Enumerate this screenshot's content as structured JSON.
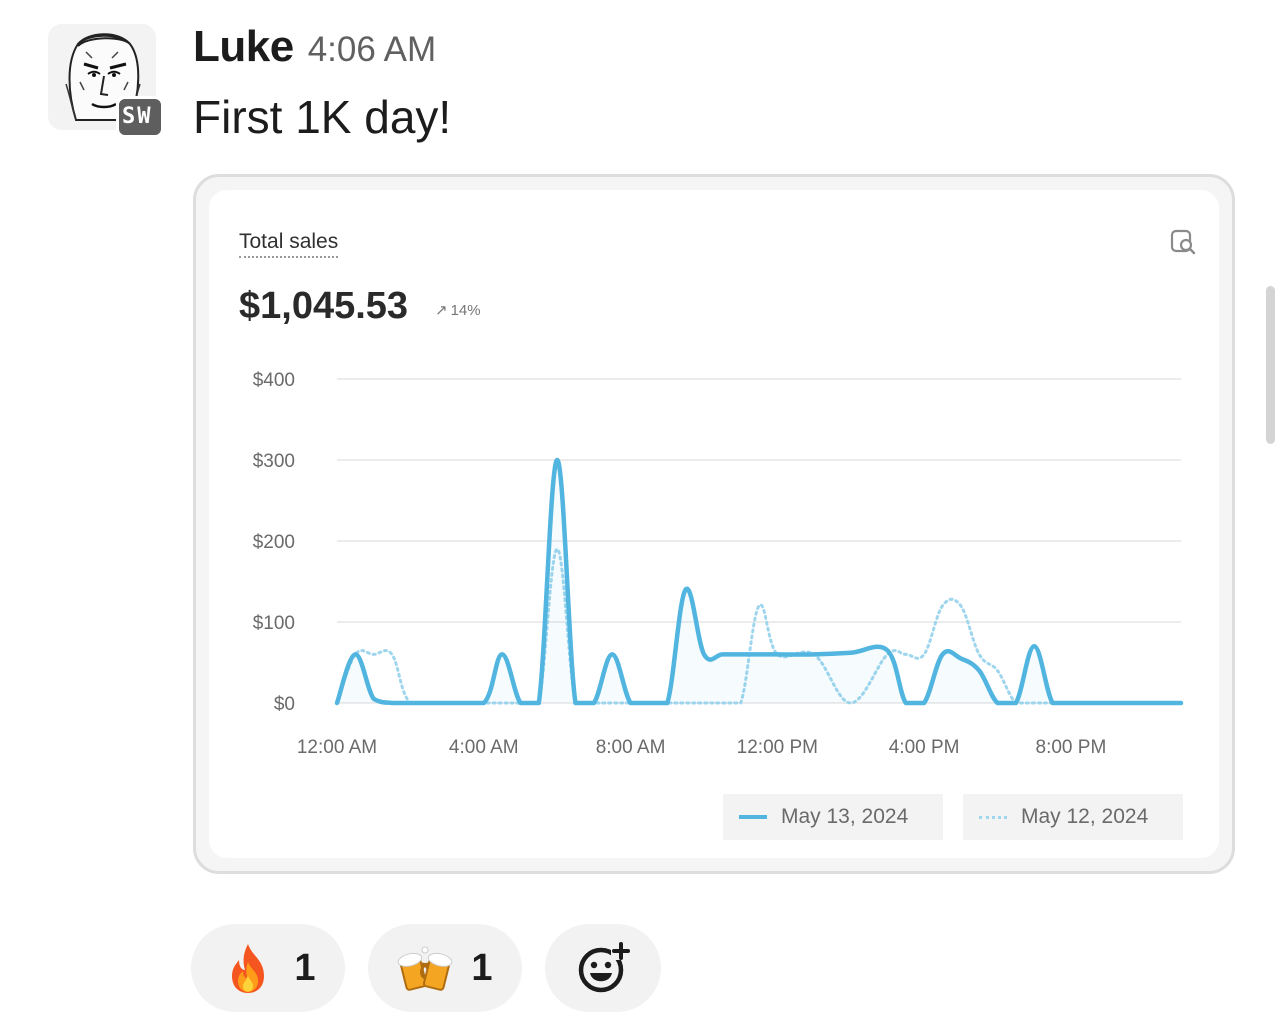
{
  "message": {
    "author": "Luke",
    "timestamp": "4:06 AM",
    "text": "First 1K day!",
    "avatar_badge": "SW"
  },
  "card": {
    "title": "Total sales",
    "value": "$1,045.53",
    "change": "14%",
    "change_arrow": "↗",
    "icon": "magnifier-page-icon"
  },
  "chart_data": {
    "type": "line",
    "x_unit": "hour of day",
    "x": [
      0,
      0.5,
      1,
      1.5,
      2,
      3,
      4,
      4.5,
      5,
      5.5,
      6,
      6.5,
      7,
      7.5,
      8,
      8.5,
      9,
      9.5,
      10,
      10.5,
      11,
      11.5,
      12,
      13,
      14,
      15,
      15.5,
      16,
      16.5,
      17,
      17.5,
      18,
      18.5,
      19,
      19.5,
      20,
      20.5,
      21,
      22,
      23
    ],
    "x_ticks": [
      "12:00 AM",
      "4:00 AM",
      "8:00 AM",
      "12:00 PM",
      "4:00 PM",
      "8:00 PM"
    ],
    "x_tick_values": [
      0,
      4,
      8,
      12,
      16,
      20
    ],
    "y_ticks": [
      "$400",
      "$300",
      "$200",
      "$100",
      "$0"
    ],
    "y_tick_values": [
      400,
      300,
      200,
      100,
      0
    ],
    "ylim": [
      0,
      400
    ],
    "xlim": [
      0,
      23
    ],
    "series": [
      {
        "name": "May 13, 2024",
        "style": "solid",
        "color": "#51b5e0",
        "values": [
          0,
          60,
          5,
          0,
          0,
          0,
          0,
          60,
          0,
          0,
          300,
          0,
          0,
          60,
          0,
          0,
          0,
          140,
          60,
          60,
          60,
          60,
          60,
          60,
          62,
          65,
          0,
          0,
          60,
          55,
          40,
          0,
          0,
          70,
          0,
          0,
          0,
          0,
          0,
          0
        ]
      },
      {
        "name": "May 12, 2024",
        "style": "dotted",
        "color": "#9fd6ee",
        "values": [
          0,
          60,
          60,
          60,
          0,
          0,
          0,
          0,
          0,
          0,
          190,
          0,
          0,
          0,
          0,
          0,
          0,
          0,
          0,
          0,
          0,
          120,
          60,
          60,
          0,
          60,
          60,
          60,
          120,
          120,
          60,
          40,
          0,
          0,
          0,
          0,
          0,
          0,
          0,
          0
        ]
      }
    ],
    "grid": true,
    "legend": "bottom-right"
  },
  "legend": {
    "series1": "May 13, 2024",
    "series2": "May 12, 2024"
  },
  "reactions": {
    "fire": {
      "emoji": "fire-icon",
      "count": "1"
    },
    "beer": {
      "emoji": "clinking-beer-mugs-icon",
      "count": "1"
    },
    "add": {
      "emoji": "add-reaction-icon"
    }
  }
}
